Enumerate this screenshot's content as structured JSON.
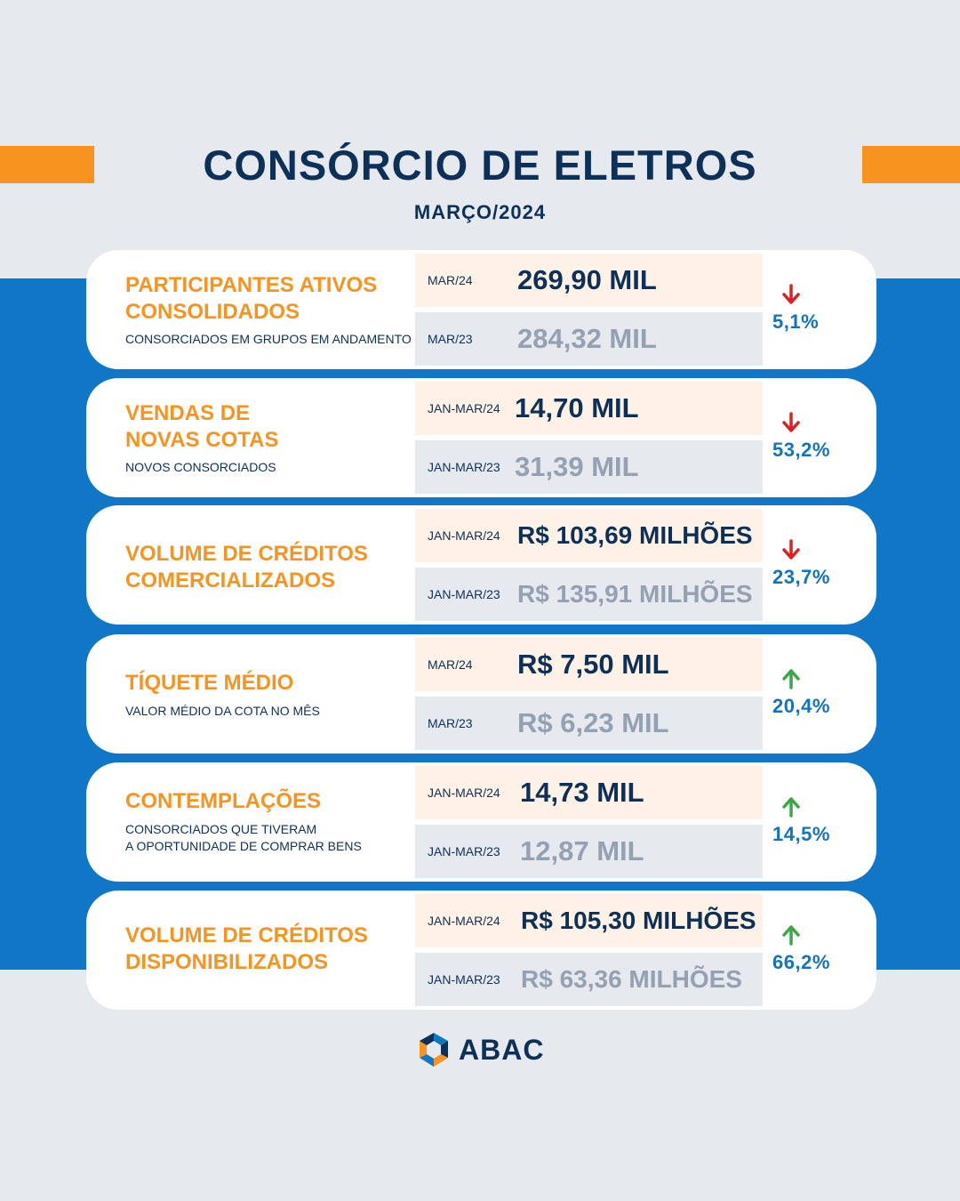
{
  "header": {
    "title": "CONSÓRCIO DE ELETROS",
    "subtitle": "MARÇO/2024"
  },
  "colors": {
    "accent_orange": "#f7931e",
    "navy": "#0d3059",
    "blue_band": "#0f77c6",
    "muted_gray": "#94a1b2",
    "down_red": "#e02020",
    "up_green": "#3aa845"
  },
  "cards": [
    {
      "title": "PARTICIPANTES ATIVOS\nCONSOLIDADOS",
      "description": "CONSORCIADOS EM GRUPOS EM ANDAMENTO",
      "current_period": "MAR/24",
      "current_value": "269,90 MIL",
      "previous_period": "MAR/23",
      "previous_value": "284,32 MIL",
      "change_direction": "down",
      "change_icon": "arrow-down-icon",
      "change_pct": "5,1%"
    },
    {
      "title": "VENDAS DE\nNOVAS COTAS",
      "description": "NOVOS CONSORCIADOS",
      "current_period": "JAN-MAR/24",
      "current_value": "14,70 MIL",
      "previous_period": "JAN-MAR/23",
      "previous_value": "31,39 MIL",
      "change_direction": "down",
      "change_icon": "arrow-down-icon",
      "change_pct": "53,2%"
    },
    {
      "title": "VOLUME DE CRÉDITOS\nCOMERCIALIZADOS",
      "description": "",
      "current_period": "JAN-MAR/24",
      "current_value": "R$ 103,69 MILHÕES",
      "previous_period": "JAN-MAR/23",
      "previous_value": "R$ 135,91 MILHÕES",
      "change_direction": "down",
      "change_icon": "arrow-down-icon",
      "change_pct": "23,7%"
    },
    {
      "title": "TÍQUETE MÉDIO",
      "description": "VALOR MÉDIO DA COTA NO MÊS",
      "current_period": "MAR/24",
      "current_value": "R$ 7,50 MIL",
      "previous_period": "MAR/23",
      "previous_value": "R$ 6,23 MIL",
      "change_direction": "up",
      "change_icon": "arrow-up-icon",
      "change_pct": "20,4%"
    },
    {
      "title": "CONTEMPLAÇÕES",
      "description": "CONSORCIADOS QUE TIVERAM\nA OPORTUNIDADE DE COMPRAR BENS",
      "current_period": "JAN-MAR/24",
      "current_value": "14,73 MIL",
      "previous_period": "JAN-MAR/23",
      "previous_value": "12,87 MIL",
      "change_direction": "up",
      "change_icon": "arrow-up-icon",
      "change_pct": "14,5%"
    },
    {
      "title": "VOLUME DE CRÉDITOS\nDISPONIBILIZADOS",
      "description": "",
      "current_period": "JAN-MAR/24",
      "current_value": "R$ 105,30 MILHÕES",
      "previous_period": "JAN-MAR/23",
      "previous_value": "R$ 63,36 MILHÕES",
      "change_direction": "up",
      "change_icon": "arrow-up-icon",
      "change_pct": "66,2%"
    }
  ],
  "footer": {
    "logo_text": "ABAC",
    "logo_icon": "abac-logo-icon"
  }
}
